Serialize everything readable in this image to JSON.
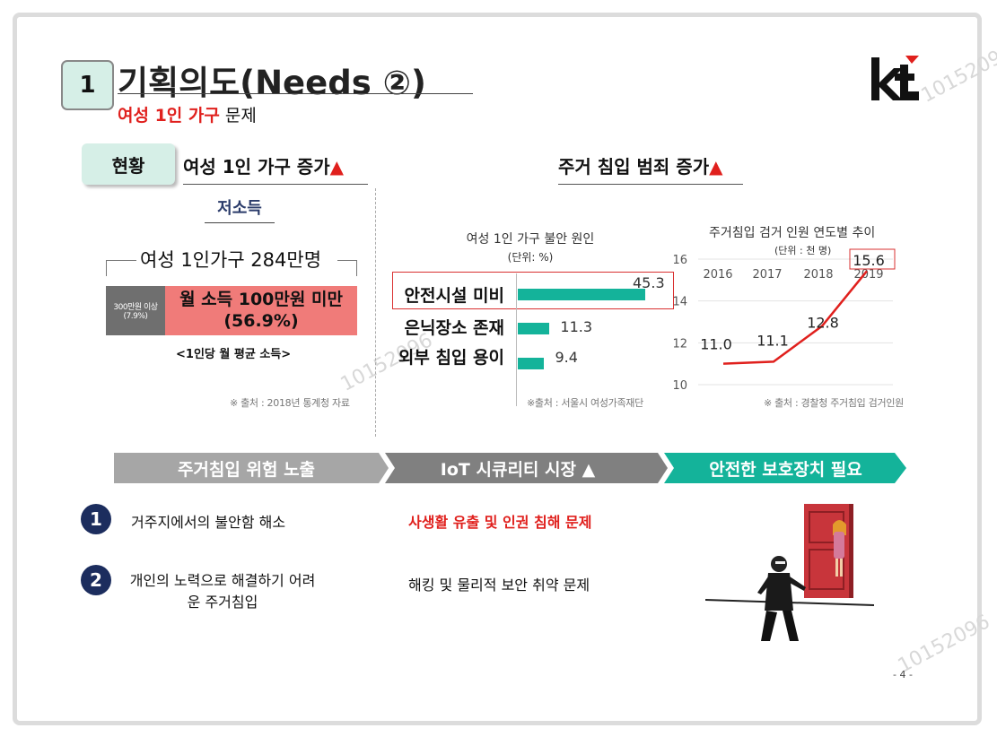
{
  "header": {
    "number": "1",
    "title": "기획의도(Needs ②)",
    "subtitle_red": "여성 1인 가구",
    "subtitle_rest": " 문제"
  },
  "logo_text": "kt",
  "section_pill": "현황",
  "left_panel": {
    "heading": "여성 1인 가구 증가",
    "heading_mark": "▲",
    "low_income": "저소득",
    "households": "여성 1인가구 284만명",
    "gray_bar_line1": "300만원 이상",
    "gray_bar_line2": "(7.9%)",
    "red_bar_line1": "월 소득 100만원 미만",
    "red_bar_line2": "(56.9%)",
    "avg_note": "<1인당 월 평균 소득>",
    "source": "※ 출처 : 2018년 통계청 자료"
  },
  "right_heading": "주거 침입 범죄 증가",
  "right_heading_mark": "▲",
  "chart_data": [
    {
      "type": "bar",
      "orientation": "horizontal",
      "title": "여성 1인 가구 불안 원인",
      "unit_label": "(단위: %)",
      "categories": [
        "안전시설 미비",
        "은닉장소 존재",
        "외부 침입 용이"
      ],
      "values": [
        45.3,
        11.3,
        9.4
      ],
      "value_labels": [
        "45.3",
        "11.3",
        "9.4"
      ],
      "highlighted": "안전시설 미비",
      "bar_color": "#14b39a",
      "source": "※출처 : 서울시 여성가족재단"
    },
    {
      "type": "line",
      "title": "주거침입 검거 인원 연도별 추이",
      "unit_label": "(단위 : 천 명)",
      "x": [
        "2016",
        "2017",
        "2018",
        "2019"
      ],
      "y": [
        11.0,
        11.1,
        12.8,
        15.6
      ],
      "value_labels": [
        "11.0",
        "11.1",
        "12.8",
        "15.6"
      ],
      "highlighted": "15.6",
      "ylim": [
        10,
        16
      ],
      "yticks": [
        "16",
        "14",
        "12",
        "10"
      ],
      "grid": true,
      "line_color": "#e0201d",
      "source": "※ 출처 : 경찰청 주거침입 검거인원"
    }
  ],
  "banners": [
    {
      "label": "주거침입 위험 노출",
      "color": "#a6a6a6"
    },
    {
      "label": "IoT 시큐리티 시장 ▲",
      "color": "#808080"
    },
    {
      "label": "안전한 보호장치 필요",
      "color": "#14b39a"
    }
  ],
  "points": [
    {
      "number": "1",
      "left": "거주지에서의 불안함 해소",
      "right": "사생활 유출 및 인권 침해 문제"
    },
    {
      "number": "2",
      "left": "개인의 노력으로 해결하기 어려운 주거침입",
      "right": "해킹 및 물리적 보안 취약 문제"
    }
  ],
  "page_number": "- 4 -",
  "watermark": "10152096",
  "colors": {
    "accent_red": "#e0201d",
    "mint": "#d6efe7",
    "teal": "#14b39a",
    "navy": "#1c2d5e"
  }
}
